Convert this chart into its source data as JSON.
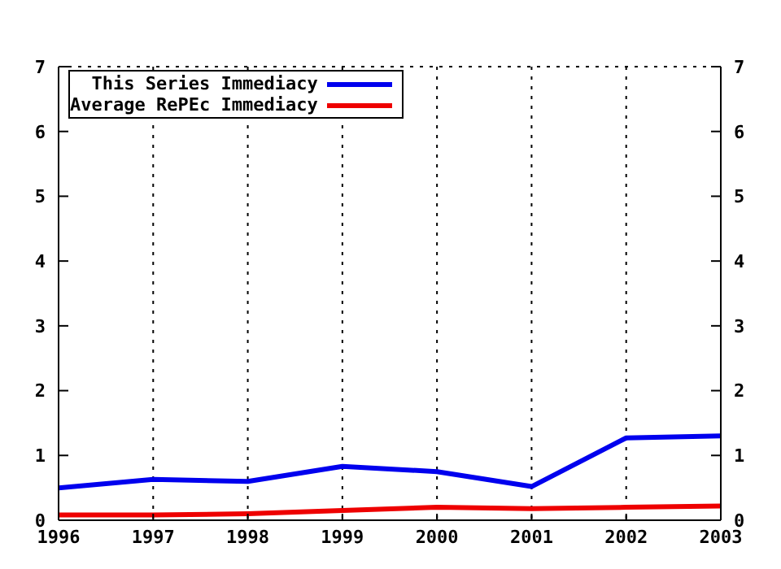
{
  "chart_data": {
    "type": "line",
    "x": [
      1996,
      1997,
      1998,
      1999,
      2000,
      2001,
      2002,
      2003
    ],
    "series": [
      {
        "name": "This Series Immediacy",
        "color": "#0000ee",
        "values": [
          0.5,
          0.63,
          0.6,
          0.83,
          0.75,
          0.52,
          1.27,
          1.3
        ]
      },
      {
        "name": "Average RePEc Immediacy",
        "color": "#ee0000",
        "values": [
          0.08,
          0.08,
          0.1,
          0.15,
          0.2,
          0.18,
          0.2,
          0.22
        ]
      }
    ],
    "xlim": [
      1996,
      2003
    ],
    "xticks": [
      1996,
      1997,
      1998,
      1999,
      2000,
      2001,
      2002,
      2003
    ],
    "ylim": [
      0,
      7
    ],
    "yticks": [
      0,
      1,
      2,
      3,
      4,
      5,
      6,
      7
    ],
    "y2lim": [
      0,
      7
    ],
    "y2ticks": [
      0,
      1,
      2,
      3,
      4,
      5,
      6,
      7
    ],
    "grid": true,
    "legend": "top left",
    "marker": "none",
    "line_style": "solid"
  }
}
